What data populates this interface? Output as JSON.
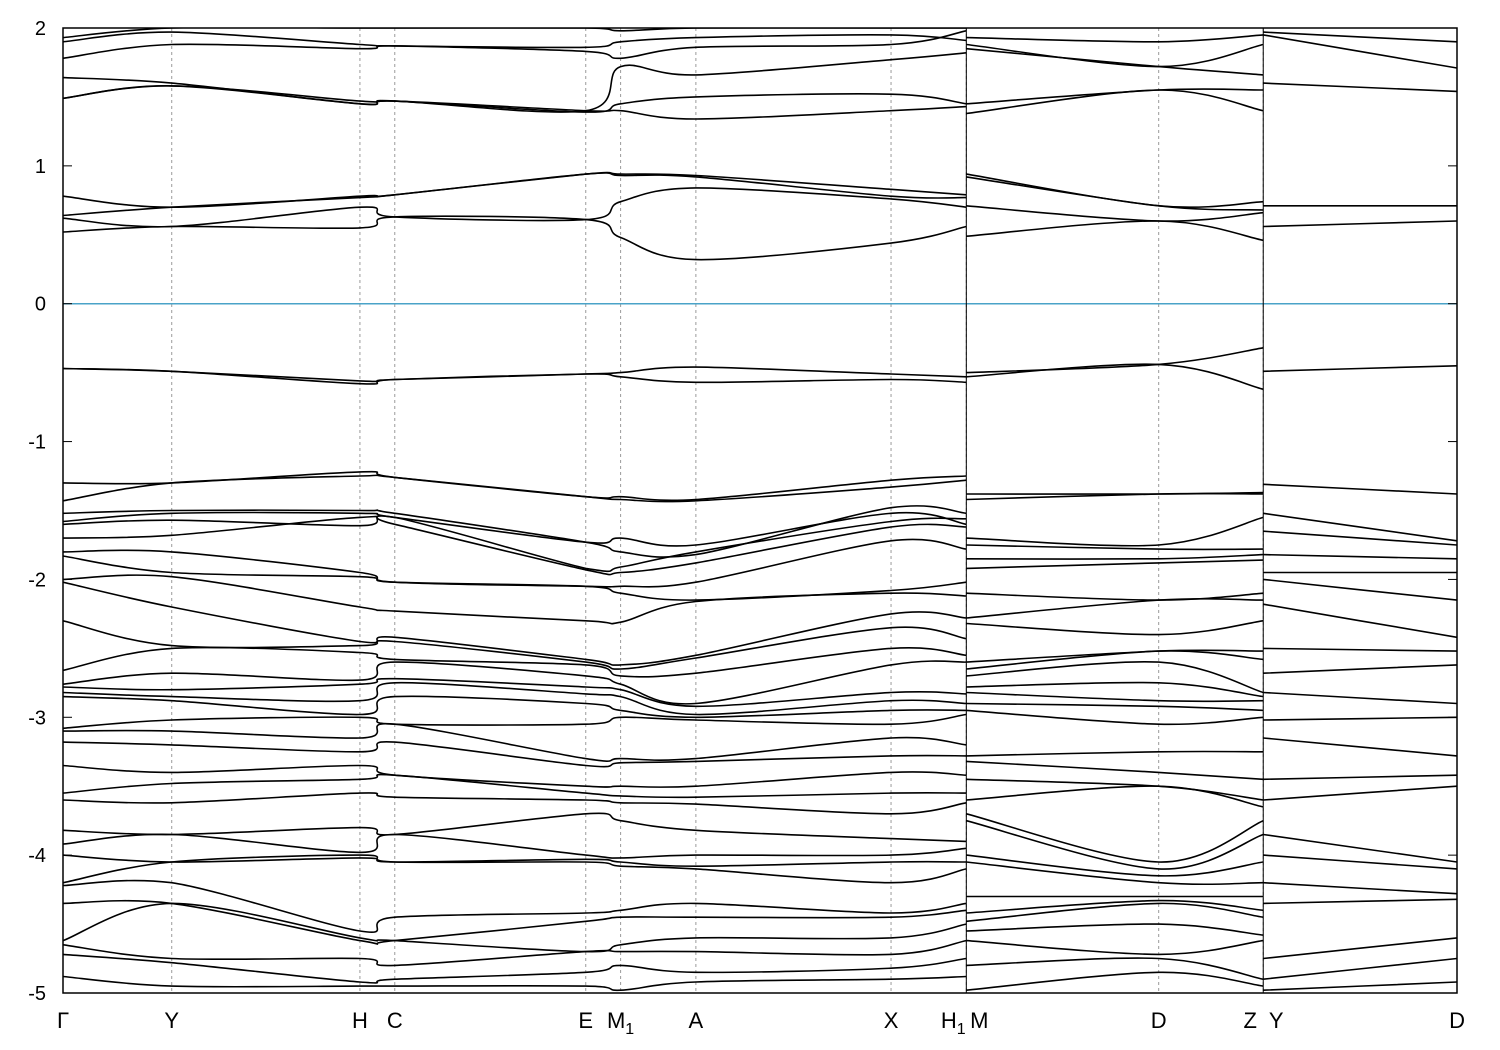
{
  "chart_data": {
    "type": "line",
    "title": "",
    "xlabel": "",
    "ylabel": "",
    "ylim": [
      -5,
      2
    ],
    "yticks": [
      -5,
      -4,
      -3,
      -2,
      -1,
      0,
      1,
      2
    ],
    "fermi_level": 0,
    "fermi_color": "#4aa3c8",
    "band_color": "#000000",
    "grid": "vertical dotted lines at high-symmetry points",
    "kpoints": [
      {
        "label": "Γ",
        "sub": "",
        "x": 0.0
      },
      {
        "label": "Y",
        "sub": "",
        "x": 0.078
      },
      {
        "label": "H",
        "sub": "",
        "x": 0.213
      },
      {
        "label": "C",
        "sub": "",
        "x": 0.238
      },
      {
        "label": "E",
        "sub": "",
        "x": 0.375
      },
      {
        "label": "M",
        "sub": "1",
        "x": 0.4
      },
      {
        "label": "A",
        "sub": "",
        "x": 0.454
      },
      {
        "label": "X",
        "sub": "",
        "x": 0.594
      },
      {
        "label": "H",
        "sub": "1",
        "x": 0.648
      },
      {
        "label": "M",
        "sub": "",
        "x": 0.648
      },
      {
        "label": "D",
        "sub": "",
        "x": 0.786
      },
      {
        "label": "Z",
        "sub": "",
        "x": 0.861
      },
      {
        "label": "Y",
        "sub": "",
        "x": 0.861
      },
      {
        "label": "D",
        "sub": "",
        "x": 1.0
      }
    ],
    "segments": [
      {
        "path": "Γ-Y-H-C-E-M1-A-X-H1",
        "x": [
          0.0,
          0.078,
          0.213,
          0.238,
          0.375,
          0.4,
          0.454,
          0.594,
          0.648
        ]
      },
      {
        "path": "M-D-Z",
        "x": [
          0.648,
          0.786,
          0.861
        ]
      },
      {
        "path": "Y-D",
        "x": [
          0.861,
          1.0
        ]
      }
    ],
    "series": [
      {
        "segment": 0,
        "values": [
          1.93,
          2.0,
          2.0,
          2.0,
          2.0,
          1.98,
          2.0,
          2.0,
          2.0
        ]
      },
      {
        "segment": 0,
        "values": [
          1.9,
          1.97,
          1.88,
          1.87,
          1.86,
          1.9,
          1.93,
          1.95,
          1.91
        ]
      },
      {
        "segment": 0,
        "values": [
          1.78,
          1.88,
          1.85,
          1.87,
          1.83,
          1.78,
          1.86,
          1.88,
          1.98
        ]
      },
      {
        "segment": 0,
        "values": [
          1.64,
          1.6,
          1.45,
          1.47,
          1.4,
          1.72,
          1.66,
          1.77,
          1.82
        ]
      },
      {
        "segment": 0,
        "values": [
          1.49,
          1.58,
          1.47,
          1.47,
          1.39,
          1.45,
          1.5,
          1.52,
          1.45
        ]
      },
      {
        "segment": 0,
        "values": [
          1.49,
          1.58,
          1.45,
          1.47,
          1.4,
          1.4,
          1.34,
          1.4,
          1.43
        ]
      },
      {
        "segment": 0,
        "values": [
          0.78,
          0.7,
          0.78,
          0.79,
          0.94,
          0.94,
          0.93,
          0.83,
          0.79
        ]
      },
      {
        "segment": 0,
        "values": [
          0.64,
          0.7,
          0.77,
          0.79,
          0.94,
          0.93,
          0.92,
          0.78,
          0.77
        ]
      },
      {
        "segment": 0,
        "values": [
          0.62,
          0.56,
          0.7,
          0.63,
          0.61,
          0.74,
          0.84,
          0.76,
          0.7
        ]
      },
      {
        "segment": 0,
        "values": [
          0.52,
          0.56,
          0.55,
          0.63,
          0.61,
          0.48,
          0.32,
          0.44,
          0.56
        ]
      },
      {
        "segment": 0,
        "values": [
          -0.47,
          -0.49,
          -0.56,
          -0.55,
          -0.51,
          -0.5,
          -0.46,
          -0.51,
          -0.53
        ]
      },
      {
        "segment": 0,
        "values": [
          -0.47,
          -0.49,
          -0.58,
          -0.55,
          -0.51,
          -0.53,
          -0.57,
          -0.55,
          -0.57
        ]
      },
      {
        "segment": 0,
        "values": [
          -1.3,
          -1.3,
          -1.22,
          -1.26,
          -1.4,
          -1.4,
          -1.42,
          -1.28,
          -1.25
        ]
      },
      {
        "segment": 0,
        "values": [
          -1.43,
          -1.3,
          -1.25,
          -1.26,
          -1.4,
          -1.42,
          -1.43,
          -1.33,
          -1.28
        ]
      },
      {
        "segment": 0,
        "values": [
          -1.52,
          -1.5,
          -1.5,
          -1.52,
          -1.73,
          -1.8,
          -1.82,
          -1.48,
          -1.52
        ]
      },
      {
        "segment": 0,
        "values": [
          -1.58,
          -1.52,
          -1.52,
          -1.55,
          -1.73,
          -1.7,
          -1.75,
          -1.52,
          -1.6
        ]
      },
      {
        "segment": 0,
        "values": [
          -1.6,
          -1.57,
          -1.61,
          -1.55,
          -1.92,
          -1.91,
          -1.8,
          -1.58,
          -1.56
        ]
      },
      {
        "segment": 0,
        "values": [
          -1.7,
          -1.68,
          -1.55,
          -1.6,
          -1.93,
          -1.95,
          -1.88,
          -1.62,
          -1.62
        ]
      },
      {
        "segment": 0,
        "values": [
          -1.8,
          -1.8,
          -1.95,
          -2.02,
          -2.05,
          -2.05,
          -2.02,
          -1.72,
          -1.78
        ]
      },
      {
        "segment": 0,
        "values": [
          -1.83,
          -1.95,
          -1.98,
          -2.02,
          -2.05,
          -2.1,
          -2.15,
          -2.08,
          -2.02
        ]
      },
      {
        "segment": 0,
        "values": [
          -2.0,
          -1.98,
          -2.2,
          -2.23,
          -2.3,
          -2.31,
          -2.16,
          -2.1,
          -2.12
        ]
      },
      {
        "segment": 0,
        "values": [
          -2.02,
          -2.2,
          -2.45,
          -2.42,
          -2.58,
          -2.62,
          -2.55,
          -2.25,
          -2.28
        ]
      },
      {
        "segment": 0,
        "values": [
          -2.3,
          -2.48,
          -2.48,
          -2.45,
          -2.6,
          -2.65,
          -2.57,
          -2.35,
          -2.43
        ]
      },
      {
        "segment": 0,
        "values": [
          -2.66,
          -2.5,
          -2.53,
          -2.58,
          -2.62,
          -2.7,
          -2.68,
          -2.5,
          -2.55
        ]
      },
      {
        "segment": 0,
        "values": [
          -2.76,
          -2.68,
          -2.73,
          -2.6,
          -2.7,
          -2.76,
          -2.9,
          -2.62,
          -2.6
        ]
      },
      {
        "segment": 0,
        "values": [
          -2.78,
          -2.8,
          -2.76,
          -2.72,
          -2.78,
          -2.8,
          -2.92,
          -2.82,
          -2.83
        ]
      },
      {
        "segment": 0,
        "values": [
          -2.82,
          -2.85,
          -2.88,
          -2.75,
          -2.83,
          -2.85,
          -2.98,
          -2.88,
          -2.9
        ]
      },
      {
        "segment": 0,
        "values": [
          -2.85,
          -2.88,
          -2.98,
          -2.85,
          -2.9,
          -2.95,
          -3.0,
          -2.95,
          -2.95
        ]
      },
      {
        "segment": 0,
        "values": [
          -3.08,
          -3.02,
          -3.0,
          -3.05,
          -3.05,
          -3.0,
          -3.02,
          -3.05,
          -2.98
        ]
      },
      {
        "segment": 0,
        "values": [
          -3.1,
          -3.1,
          -3.15,
          -3.05,
          -3.3,
          -3.3,
          -3.3,
          -3.15,
          -3.2
        ]
      },
      {
        "segment": 0,
        "values": [
          -3.18,
          -3.2,
          -3.25,
          -3.18,
          -3.35,
          -3.33,
          -3.32,
          -3.28,
          -3.28
        ]
      },
      {
        "segment": 0,
        "values": [
          -3.35,
          -3.4,
          -3.35,
          -3.42,
          -3.5,
          -3.5,
          -3.5,
          -3.4,
          -3.42
        ]
      },
      {
        "segment": 0,
        "values": [
          -3.55,
          -3.48,
          -3.45,
          -3.42,
          -3.55,
          -3.57,
          -3.58,
          -3.55,
          -3.55
        ]
      },
      {
        "segment": 0,
        "values": [
          -3.6,
          -3.62,
          -3.55,
          -3.58,
          -3.6,
          -3.62,
          -3.63,
          -3.7,
          -3.62
        ]
      },
      {
        "segment": 0,
        "values": [
          -3.82,
          -3.85,
          -3.8,
          -3.85,
          -3.7,
          -3.75,
          -3.82,
          -3.88,
          -3.9
        ]
      },
      {
        "segment": 0,
        "values": [
          -3.92,
          -3.85,
          -3.98,
          -3.85,
          -4.0,
          -4.02,
          -4.0,
          -4.0,
          -3.95
        ]
      },
      {
        "segment": 0,
        "values": [
          -4.0,
          -4.05,
          -4.02,
          -4.05,
          -4.03,
          -4.05,
          -4.08,
          -4.05,
          -4.05
        ]
      },
      {
        "segment": 0,
        "values": [
          -4.2,
          -4.05,
          -4.0,
          -4.05,
          -4.05,
          -4.08,
          -4.1,
          -4.2,
          -4.1
        ]
      },
      {
        "segment": 0,
        "values": [
          -4.22,
          -4.2,
          -4.55,
          -4.45,
          -4.42,
          -4.4,
          -4.35,
          -4.42,
          -4.35
        ]
      },
      {
        "segment": 0,
        "values": [
          -4.35,
          -4.35,
          -4.62,
          -4.62,
          -4.48,
          -4.45,
          -4.45,
          -4.45,
          -4.4
        ]
      },
      {
        "segment": 0,
        "values": [
          -4.62,
          -4.35,
          -4.6,
          -4.62,
          -4.7,
          -4.65,
          -4.6,
          -4.6,
          -4.5
        ]
      },
      {
        "segment": 0,
        "values": [
          -4.65,
          -4.75,
          -4.75,
          -4.8,
          -4.7,
          -4.7,
          -4.7,
          -4.72,
          -4.62
        ]
      },
      {
        "segment": 0,
        "values": [
          -4.72,
          -4.78,
          -4.92,
          -4.9,
          -4.85,
          -4.8,
          -4.85,
          -4.82,
          -4.75
        ]
      },
      {
        "segment": 0,
        "values": [
          -4.88,
          -4.95,
          -4.95,
          -4.95,
          -4.95,
          -4.98,
          -4.92,
          -4.9,
          -4.88
        ]
      },
      {
        "segment": 1,
        "values": [
          1.93,
          1.9,
          1.95
        ]
      },
      {
        "segment": 1,
        "values": [
          1.88,
          1.72,
          1.88
        ]
      },
      {
        "segment": 1,
        "values": [
          1.85,
          1.72,
          1.66
        ]
      },
      {
        "segment": 1,
        "values": [
          1.45,
          1.55,
          1.55
        ]
      },
      {
        "segment": 1,
        "values": [
          1.38,
          1.55,
          1.4
        ]
      },
      {
        "segment": 1,
        "values": [
          0.94,
          0.71,
          0.74
        ]
      },
      {
        "segment": 1,
        "values": [
          0.92,
          0.71,
          0.68
        ]
      },
      {
        "segment": 1,
        "values": [
          0.71,
          0.6,
          0.66
        ]
      },
      {
        "segment": 1,
        "values": [
          0.49,
          0.6,
          0.46
        ]
      },
      {
        "segment": 1,
        "values": [
          -0.5,
          -0.44,
          -0.32
        ]
      },
      {
        "segment": 1,
        "values": [
          -0.53,
          -0.44,
          -0.62
        ]
      },
      {
        "segment": 1,
        "values": [
          -1.38,
          -1.38,
          -1.37
        ]
      },
      {
        "segment": 1,
        "values": [
          -1.42,
          -1.38,
          -1.38
        ]
      },
      {
        "segment": 1,
        "values": [
          -1.7,
          -1.75,
          -1.55
        ]
      },
      {
        "segment": 1,
        "values": [
          -1.75,
          -1.78,
          -1.78
        ]
      },
      {
        "segment": 1,
        "values": [
          -1.85,
          -1.85,
          -1.82
        ]
      },
      {
        "segment": 1,
        "values": [
          -1.92,
          -1.88,
          -1.86
        ]
      },
      {
        "segment": 1,
        "values": [
          -2.1,
          -2.15,
          -2.1
        ]
      },
      {
        "segment": 1,
        "values": [
          -2.28,
          -2.15,
          -2.15
        ]
      },
      {
        "segment": 1,
        "values": [
          -2.32,
          -2.4,
          -2.3
        ]
      },
      {
        "segment": 1,
        "values": [
          -2.6,
          -2.52,
          -2.52
        ]
      },
      {
        "segment": 1,
        "values": [
          -2.65,
          -2.52,
          -2.58
        ]
      },
      {
        "segment": 1,
        "values": [
          -2.7,
          -2.6,
          -2.82
        ]
      },
      {
        "segment": 1,
        "values": [
          -2.78,
          -2.75,
          -2.85
        ]
      },
      {
        "segment": 1,
        "values": [
          -2.82,
          -2.88,
          -2.88
        ]
      },
      {
        "segment": 1,
        "values": [
          -2.9,
          -2.92,
          -2.95
        ]
      },
      {
        "segment": 1,
        "values": [
          -2.95,
          -3.05,
          -3.0
        ]
      },
      {
        "segment": 1,
        "values": [
          -3.28,
          -3.25,
          -3.25
        ]
      },
      {
        "segment": 1,
        "values": [
          -3.32,
          -3.4,
          -3.45
        ]
      },
      {
        "segment": 1,
        "values": [
          -3.45,
          -3.5,
          -3.6
        ]
      },
      {
        "segment": 1,
        "values": [
          -3.6,
          -3.5,
          -3.65
        ]
      },
      {
        "segment": 1,
        "values": [
          -3.7,
          -4.05,
          -3.75
        ]
      },
      {
        "segment": 1,
        "values": [
          -3.75,
          -4.1,
          -3.85
        ]
      },
      {
        "segment": 1,
        "values": [
          -4.0,
          -4.15,
          -4.05
        ]
      },
      {
        "segment": 1,
        "values": [
          -4.05,
          -4.2,
          -4.2
        ]
      },
      {
        "segment": 1,
        "values": [
          -4.3,
          -4.3,
          -4.3
        ]
      },
      {
        "segment": 1,
        "values": [
          -4.42,
          -4.33,
          -4.4
        ]
      },
      {
        "segment": 1,
        "values": [
          -4.48,
          -4.35,
          -4.45
        ]
      },
      {
        "segment": 1,
        "values": [
          -4.55,
          -4.5,
          -4.58
        ]
      },
      {
        "segment": 1,
        "values": [
          -4.62,
          -4.72,
          -4.62
        ]
      },
      {
        "segment": 1,
        "values": [
          -4.8,
          -4.75,
          -4.9
        ]
      },
      {
        "segment": 1,
        "values": [
          -4.98,
          -4.85,
          -4.95
        ]
      },
      {
        "segment": 2,
        "values": [
          1.97,
          1.9
        ]
      },
      {
        "segment": 2,
        "values": [
          1.95,
          1.71
        ]
      },
      {
        "segment": 2,
        "values": [
          1.6,
          1.54
        ]
      },
      {
        "segment": 2,
        "values": [
          0.71,
          0.71
        ]
      },
      {
        "segment": 2,
        "values": [
          0.56,
          0.6
        ]
      },
      {
        "segment": 2,
        "values": [
          -0.49,
          -0.45
        ]
      },
      {
        "segment": 2,
        "values": [
          -1.31,
          -1.38
        ]
      },
      {
        "segment": 2,
        "values": [
          -1.52,
          -1.72
        ]
      },
      {
        "segment": 2,
        "values": [
          -1.65,
          -1.75
        ]
      },
      {
        "segment": 2,
        "values": [
          -1.82,
          -1.85
        ]
      },
      {
        "segment": 2,
        "values": [
          -1.95,
          -1.95
        ]
      },
      {
        "segment": 2,
        "values": [
          -2.0,
          -2.15
        ]
      },
      {
        "segment": 2,
        "values": [
          -2.18,
          -2.42
        ]
      },
      {
        "segment": 2,
        "values": [
          -2.5,
          -2.52
        ]
      },
      {
        "segment": 2,
        "values": [
          -2.68,
          -2.62
        ]
      },
      {
        "segment": 2,
        "values": [
          -2.82,
          -2.9
        ]
      },
      {
        "segment": 2,
        "values": [
          -3.02,
          -3.0
        ]
      },
      {
        "segment": 2,
        "values": [
          -3.15,
          -3.28
        ]
      },
      {
        "segment": 2,
        "values": [
          -3.45,
          -3.42
        ]
      },
      {
        "segment": 2,
        "values": [
          -3.6,
          -3.5
        ]
      },
      {
        "segment": 2,
        "values": [
          -3.85,
          -4.05
        ]
      },
      {
        "segment": 2,
        "values": [
          -4.0,
          -4.1
        ]
      },
      {
        "segment": 2,
        "values": [
          -4.2,
          -4.28
        ]
      },
      {
        "segment": 2,
        "values": [
          -4.35,
          -4.32
        ]
      },
      {
        "segment": 2,
        "values": [
          -4.75,
          -4.6
        ]
      },
      {
        "segment": 2,
        "values": [
          -4.9,
          -4.75
        ]
      },
      {
        "segment": 2,
        "values": [
          -4.98,
          -4.92
        ]
      }
    ]
  }
}
